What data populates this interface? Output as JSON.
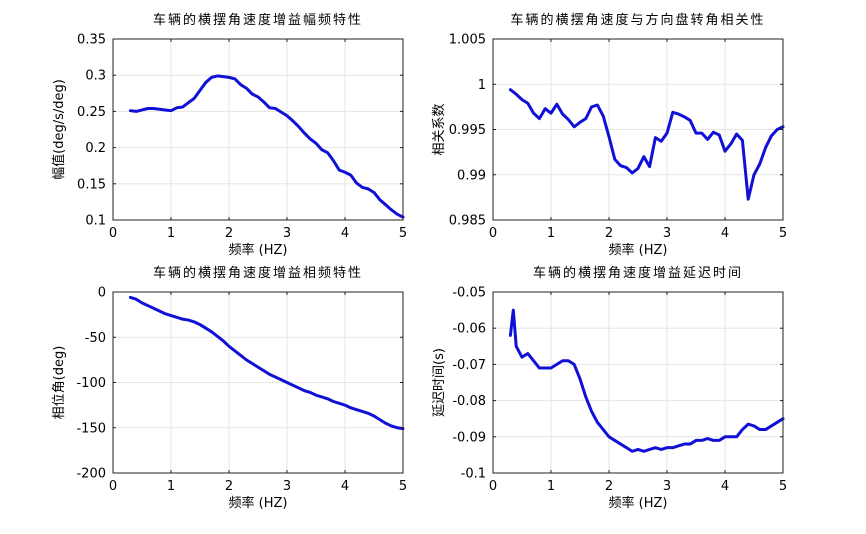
{
  "figure": {
    "background": "#ffffff",
    "line_color": "#1010d6",
    "grid_color": "#e6e6e6"
  },
  "chart_data": [
    {
      "type": "line",
      "title": "车辆的横摆角速度增益幅频特性",
      "xlabel": "频率 (HZ)",
      "ylabel": "幅值(deg/s/deg)",
      "xlim": [
        0,
        5
      ],
      "ylim": [
        0.1,
        0.35
      ],
      "xticks": [
        0,
        1,
        2,
        3,
        4,
        5
      ],
      "xtick_labels": [
        "0",
        "1",
        "2",
        "3",
        "4",
        "5"
      ],
      "yticks": [
        0.1,
        0.15,
        0.2,
        0.25,
        0.3,
        0.35
      ],
      "ytick_labels": [
        "0.1",
        "0.15",
        "0.2",
        "0.25",
        "0.3",
        "0.35"
      ],
      "grid": true,
      "series": [
        {
          "name": "幅值",
          "x": [
            0.3,
            0.4,
            0.5,
            0.6,
            0.7,
            0.8,
            0.9,
            1.0,
            1.1,
            1.2,
            1.3,
            1.4,
            1.5,
            1.6,
            1.7,
            1.8,
            1.9,
            2.0,
            2.1,
            2.2,
            2.3,
            2.4,
            2.5,
            2.6,
            2.7,
            2.8,
            2.9,
            3.0,
            3.1,
            3.2,
            3.3,
            3.4,
            3.5,
            3.6,
            3.7,
            3.8,
            3.9,
            4.0,
            4.1,
            4.2,
            4.3,
            4.4,
            4.5,
            4.6,
            4.7,
            4.8,
            4.9,
            5.0
          ],
          "y": [
            0.251,
            0.25,
            0.252,
            0.254,
            0.254,
            0.253,
            0.252,
            0.251,
            0.255,
            0.256,
            0.262,
            0.268,
            0.279,
            0.29,
            0.297,
            0.299,
            0.298,
            0.297,
            0.295,
            0.287,
            0.282,
            0.274,
            0.27,
            0.263,
            0.255,
            0.254,
            0.249,
            0.244,
            0.237,
            0.229,
            0.22,
            0.212,
            0.206,
            0.197,
            0.193,
            0.182,
            0.169,
            0.166,
            0.162,
            0.151,
            0.145,
            0.143,
            0.138,
            0.128,
            0.121,
            0.114,
            0.108,
            0.104
          ]
        }
      ]
    },
    {
      "type": "line",
      "title": "车辆的横摆角速度与方向盘转角相关性",
      "xlabel": "频率 (HZ)",
      "ylabel": "相关系数",
      "xlim": [
        0,
        5
      ],
      "ylim": [
        0.985,
        1.005
      ],
      "xticks": [
        0,
        1,
        2,
        3,
        4,
        5
      ],
      "xtick_labels": [
        "0",
        "1",
        "2",
        "3",
        "4",
        "5"
      ],
      "yticks": [
        0.985,
        0.99,
        0.995,
        1.0,
        1.005
      ],
      "ytick_labels": [
        "0.985",
        "0.99",
        "0.995",
        "1",
        "1.005"
      ],
      "grid": true,
      "series": [
        {
          "name": "相关系数",
          "x": [
            0.3,
            0.4,
            0.5,
            0.6,
            0.7,
            0.8,
            0.9,
            1.0,
            1.1,
            1.2,
            1.3,
            1.4,
            1.5,
            1.6,
            1.7,
            1.8,
            1.9,
            2.0,
            2.1,
            2.2,
            2.3,
            2.4,
            2.5,
            2.6,
            2.7,
            2.8,
            2.9,
            3.0,
            3.1,
            3.2,
            3.3,
            3.4,
            3.5,
            3.6,
            3.7,
            3.8,
            3.9,
            4.0,
            4.1,
            4.2,
            4.3,
            4.4,
            4.5,
            4.6,
            4.7,
            4.8,
            4.9,
            5.0
          ],
          "y": [
            0.9994,
            0.9989,
            0.9983,
            0.9979,
            0.9968,
            0.9962,
            0.9973,
            0.9968,
            0.9978,
            0.9967,
            0.9961,
            0.9953,
            0.9958,
            0.9962,
            0.9975,
            0.9977,
            0.9965,
            0.9942,
            0.9917,
            0.991,
            0.9908,
            0.9902,
            0.9907,
            0.992,
            0.9909,
            0.9941,
            0.9937,
            0.9946,
            0.9969,
            0.9967,
            0.9964,
            0.996,
            0.9946,
            0.9946,
            0.9939,
            0.9947,
            0.9944,
            0.9926,
            0.9934,
            0.9945,
            0.9938,
            0.9873,
            0.99,
            0.9912,
            0.993,
            0.9943,
            0.995,
            0.9953
          ]
        }
      ]
    },
    {
      "type": "line",
      "title": "车辆的横摆角速度增益相频特性",
      "xlabel": "频率 (HZ)",
      "ylabel": "相位角(deg)",
      "xlim": [
        0,
        5
      ],
      "ylim": [
        -200,
        0
      ],
      "xticks": [
        0,
        1,
        2,
        3,
        4,
        5
      ],
      "xtick_labels": [
        "0",
        "1",
        "2",
        "3",
        "4",
        "5"
      ],
      "yticks": [
        -200,
        -150,
        -100,
        -50,
        0
      ],
      "ytick_labels": [
        "-200",
        "-150",
        "-100",
        "-50",
        "0"
      ],
      "grid": true,
      "series": [
        {
          "name": "相位角",
          "x": [
            0.3,
            0.4,
            0.5,
            0.6,
            0.7,
            0.8,
            0.9,
            1.0,
            1.1,
            1.2,
            1.3,
            1.4,
            1.5,
            1.6,
            1.7,
            1.8,
            1.9,
            2.0,
            2.1,
            2.2,
            2.3,
            2.4,
            2.5,
            2.6,
            2.7,
            2.8,
            2.9,
            3.0,
            3.1,
            3.2,
            3.3,
            3.4,
            3.5,
            3.6,
            3.7,
            3.8,
            3.9,
            4.0,
            4.1,
            4.2,
            4.3,
            4.4,
            4.5,
            4.6,
            4.7,
            4.8,
            4.9,
            5.0
          ],
          "y": [
            -6,
            -8,
            -12,
            -15,
            -18,
            -21,
            -24,
            -26,
            -28,
            -30,
            -31,
            -33,
            -36,
            -40,
            -44,
            -49,
            -54,
            -60,
            -65,
            -70,
            -75,
            -79,
            -83,
            -87,
            -91,
            -94,
            -97,
            -100,
            -103,
            -106,
            -109,
            -111,
            -114,
            -116,
            -118,
            -121,
            -123,
            -125,
            -128,
            -130,
            -132,
            -134,
            -137,
            -141,
            -145,
            -148,
            -150,
            -151
          ]
        }
      ]
    },
    {
      "type": "line",
      "title": "车辆的横摆角速度增益延迟时间",
      "xlabel": "频率 (HZ)",
      "ylabel": "延迟时间(s)",
      "xlim": [
        0,
        5
      ],
      "ylim": [
        -0.1,
        -0.05
      ],
      "xticks": [
        0,
        1,
        2,
        3,
        4,
        5
      ],
      "xtick_labels": [
        "0",
        "1",
        "2",
        "3",
        "4",
        "5"
      ],
      "yticks": [
        -0.1,
        -0.09,
        -0.08,
        -0.07,
        -0.06,
        -0.05
      ],
      "ytick_labels": [
        "-0.1",
        "-0.09",
        "-0.08",
        "-0.07",
        "-0.06",
        "-0.05"
      ],
      "grid": true,
      "series": [
        {
          "name": "延迟时间",
          "x": [
            0.3,
            0.35,
            0.4,
            0.5,
            0.6,
            0.7,
            0.8,
            0.9,
            1.0,
            1.1,
            1.2,
            1.3,
            1.4,
            1.5,
            1.6,
            1.7,
            1.8,
            1.9,
            2.0,
            2.1,
            2.2,
            2.3,
            2.4,
            2.5,
            2.6,
            2.7,
            2.8,
            2.9,
            3.0,
            3.1,
            3.2,
            3.3,
            3.4,
            3.5,
            3.6,
            3.7,
            3.8,
            3.9,
            4.0,
            4.1,
            4.2,
            4.3,
            4.4,
            4.5,
            4.6,
            4.7,
            4.8,
            4.9,
            5.0
          ],
          "y": [
            -0.062,
            -0.055,
            -0.065,
            -0.068,
            -0.067,
            -0.069,
            -0.071,
            -0.071,
            -0.071,
            -0.07,
            -0.069,
            -0.069,
            -0.07,
            -0.074,
            -0.079,
            -0.083,
            -0.086,
            -0.088,
            -0.09,
            -0.091,
            -0.092,
            -0.093,
            -0.094,
            -0.0935,
            -0.094,
            -0.0935,
            -0.093,
            -0.0935,
            -0.093,
            -0.093,
            -0.0925,
            -0.092,
            -0.092,
            -0.091,
            -0.091,
            -0.0905,
            -0.091,
            -0.091,
            -0.09,
            -0.09,
            -0.09,
            -0.088,
            -0.0865,
            -0.087,
            -0.088,
            -0.088,
            -0.087,
            -0.086,
            -0.085
          ]
        }
      ]
    }
  ]
}
